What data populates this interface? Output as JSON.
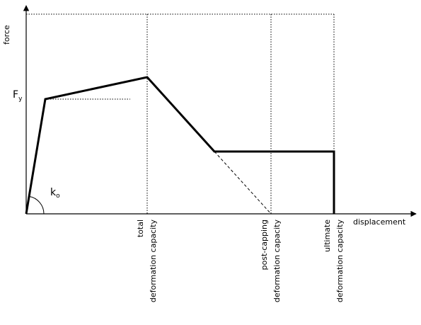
{
  "axes": {
    "y_label": "force",
    "x_label": "displacement"
  },
  "annotations": {
    "yield_force": {
      "main": "F",
      "sub": "y"
    },
    "initial_stiffness": {
      "main": "k",
      "sub": "o"
    }
  },
  "markers": [
    {
      "id": "total",
      "lines": [
        "total",
        "deformation capacity"
      ]
    },
    {
      "id": "post-capping",
      "lines": [
        "post-capping",
        "deformation capacity"
      ]
    },
    {
      "id": "ultimate",
      "lines": [
        "ultimate",
        "deformation capacity"
      ]
    }
  ]
}
